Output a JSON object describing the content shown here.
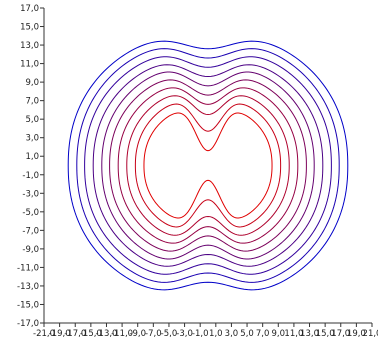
{
  "chart_data": {
    "type": "line",
    "title": "",
    "xlabel": "",
    "ylabel": "",
    "xlim": [
      -21.0,
      21.0
    ],
    "ylim": [
      -17.0,
      17.0
    ],
    "grid": false,
    "legend": "none",
    "y_ticks": [
      -17,
      -15,
      -13,
      -11,
      -9,
      -7,
      -5,
      -3,
      -1,
      1,
      3,
      5,
      7,
      9,
      11,
      13,
      15,
      17
    ],
    "y_tick_labels": [
      "-17,0",
      "-15,0",
      "-13,0",
      "-11,0",
      "-9,0",
      "-7,0",
      "-5,0",
      "-3,0",
      "-1,0",
      "1,0",
      "3,0",
      "5,0",
      "7,0",
      "9,0",
      "11,0",
      "13,0",
      "15,0",
      "17,0"
    ],
    "x_ticks": [
      -21,
      -19,
      -17,
      -15,
      -13,
      -11,
      -9,
      -7,
      -5,
      -3,
      -1,
      1,
      3,
      5,
      7,
      9,
      11,
      13,
      15,
      17,
      19,
      21
    ],
    "x_tick_labels": [
      "-21,0",
      "-19,0",
      "-17,0",
      "-15,0",
      "-13,0",
      "-11,0",
      "-9,0",
      "-7,0",
      "-5,0",
      "-3,0",
      "-1,0",
      "1,0",
      "3,0",
      "5,0",
      "7,0",
      "9,0",
      "11,0",
      "13,0",
      "15,0",
      "17,0",
      "19,0",
      "21,0"
    ],
    "color_inner": "#e00000",
    "color_outer": "#0000c8",
    "series": [
      {
        "level": 1,
        "center_y": 1.6,
        "top_y": 6.6,
        "half_width": 8.2
      },
      {
        "level": 2,
        "center_y": 3.7,
        "top_y": 7.6,
        "half_width": 9.3
      },
      {
        "level": 3,
        "center_y": 5.5,
        "top_y": 8.5,
        "half_width": 10.4
      },
      {
        "level": 4,
        "center_y": 6.6,
        "top_y": 9.4,
        "half_width": 11.5
      },
      {
        "level": 5,
        "center_y": 7.6,
        "top_y": 10.3,
        "half_width": 12.6
      },
      {
        "level": 6,
        "center_y": 8.6,
        "top_y": 11.2,
        "half_width": 13.6
      },
      {
        "level": 7,
        "center_y": 9.6,
        "top_y": 12.0,
        "half_width": 14.7
      },
      {
        "level": 8,
        "center_y": 10.6,
        "top_y": 12.9,
        "half_width": 15.8
      },
      {
        "level": 9,
        "center_y": 11.6,
        "top_y": 13.8,
        "half_width": 16.8
      },
      {
        "level": 10,
        "center_y": 12.6,
        "top_y": 14.6,
        "half_width": 17.9
      }
    ]
  }
}
